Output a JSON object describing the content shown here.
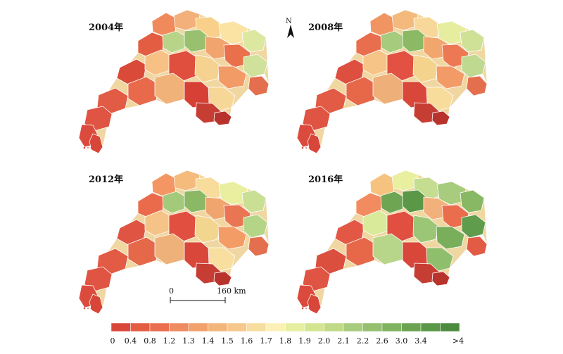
{
  "figure": {
    "maps": [
      {
        "year_label": "2004年",
        "regions": [
          {
            "color": "#d94a38"
          },
          {
            "color": "#e35d43"
          },
          {
            "color": "#f08a5c"
          },
          {
            "color": "#f3b07a"
          },
          {
            "color": "#f8d089"
          },
          {
            "color": "#fbe3a3"
          },
          {
            "color": "#dce8a0"
          },
          {
            "color": "#b7d488"
          },
          {
            "color": "#98c06e"
          },
          {
            "color": "#f1a46d"
          },
          {
            "color": "#ea6f4b"
          },
          {
            "color": "#f7c185"
          },
          {
            "color": "#e04e3e"
          },
          {
            "color": "#f5d28f"
          },
          {
            "color": "#f29b66"
          },
          {
            "color": "#cfe19a"
          },
          {
            "color": "#e96a4a"
          },
          {
            "color": "#f1b27a"
          },
          {
            "color": "#d74035"
          },
          {
            "color": "#f7d797"
          }
        ]
      },
      {
        "year_label": "2008年",
        "regions": [
          {
            "color": "#dd4f3f"
          },
          {
            "color": "#e96e4d"
          },
          {
            "color": "#f09562"
          },
          {
            "color": "#f4b97c"
          },
          {
            "color": "#f8d89a"
          },
          {
            "color": "#e6ed9f"
          },
          {
            "color": "#cfe197"
          },
          {
            "color": "#a7cb7d"
          },
          {
            "color": "#8bb964"
          },
          {
            "color": "#f1a66d"
          },
          {
            "color": "#ec7954"
          },
          {
            "color": "#f6c487"
          },
          {
            "color": "#e25141"
          },
          {
            "color": "#f4d38d"
          },
          {
            "color": "#f39b67"
          },
          {
            "color": "#bfd991"
          },
          {
            "color": "#e66848"
          },
          {
            "color": "#eeb078"
          },
          {
            "color": "#d8473a"
          },
          {
            "color": "#f7dc9b"
          }
        ]
      },
      {
        "year_label": "2012年",
        "regions": [
          {
            "color": "#df5442"
          },
          {
            "color": "#e96b4c"
          },
          {
            "color": "#f39663"
          },
          {
            "color": "#f4bb7c"
          },
          {
            "color": "#f8dc9c"
          },
          {
            "color": "#e9ef9f"
          },
          {
            "color": "#c9df93"
          },
          {
            "color": "#a3ca7b"
          },
          {
            "color": "#8ab865"
          },
          {
            "color": "#f0a56e"
          },
          {
            "color": "#ea7552"
          },
          {
            "color": "#f5c387"
          },
          {
            "color": "#e14f40"
          },
          {
            "color": "#f2d58f"
          },
          {
            "color": "#f39c66"
          },
          {
            "color": "#b4d588"
          },
          {
            "color": "#e56848"
          },
          {
            "color": "#efb17a"
          },
          {
            "color": "#d9473a"
          },
          {
            "color": "#f8df9f"
          }
        ]
      },
      {
        "year_label": "2016年",
        "regions": [
          {
            "color": "#e35845"
          },
          {
            "color": "#f28b5f"
          },
          {
            "color": "#f6c27f"
          },
          {
            "color": "#e8ef9f"
          },
          {
            "color": "#c5dd91"
          },
          {
            "color": "#a8cc7d"
          },
          {
            "color": "#88b863"
          },
          {
            "color": "#6da552"
          },
          {
            "color": "#5a9847"
          },
          {
            "color": "#f2b07a"
          },
          {
            "color": "#ea6d4d"
          },
          {
            "color": "#d9ea9b"
          },
          {
            "color": "#e04f40"
          },
          {
            "color": "#9bc676"
          },
          {
            "color": "#79ae5b"
          },
          {
            "color": "#5f9c4c"
          },
          {
            "color": "#e66848"
          },
          {
            "color": "#b8d689"
          },
          {
            "color": "#d9473a"
          },
          {
            "color": "#8fbe6c"
          }
        ]
      }
    ],
    "north_arrow": {
      "label": "N"
    },
    "scale_bar": {
      "start_label": "0",
      "end_label": "160 km"
    },
    "legend": {
      "colors": [
        "#d9473a",
        "#e35d43",
        "#ea6d4d",
        "#ef8b60",
        "#f2a06c",
        "#f3b67a",
        "#f7c88b",
        "#f8dda0",
        "#fbf1b7",
        "#e6ef9f",
        "#d4e592",
        "#c0da86",
        "#a8cc7d",
        "#94c06f",
        "#80b360",
        "#6ba451",
        "#5a9847",
        "#4e8b3f"
      ],
      "labels": [
        "0",
        "0.4",
        "0.8",
        "1.2",
        "1.3",
        "1.4",
        "1.5",
        "1.6",
        "1.7",
        "1.8",
        "1.9",
        "2.0",
        "2.1",
        "2.2",
        "2.6",
        "3.0",
        "3.4",
        ">4"
      ]
    }
  }
}
